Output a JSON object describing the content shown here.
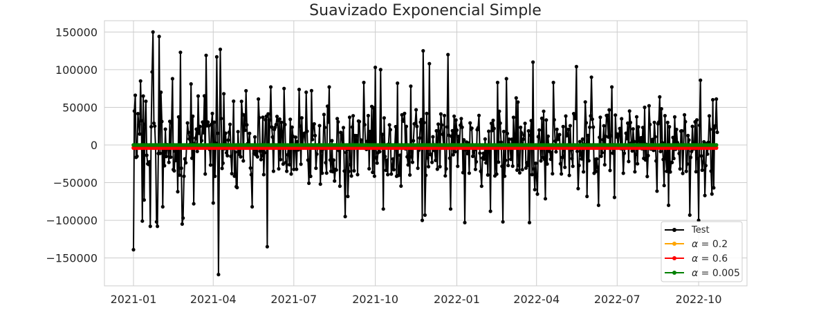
{
  "chart_data": {
    "type": "line",
    "title": "Suavizado Exponencial Simple",
    "xlabel": "",
    "ylabel": "",
    "x_range": [
      "2021-01-01",
      "2022-10-22"
    ],
    "ylim": [
      -187000,
      165000
    ],
    "x_ticks": [
      "2021-01",
      "2021-04",
      "2021-07",
      "2021-10",
      "2022-01",
      "2022-04",
      "2022-07",
      "2022-10"
    ],
    "y_ticks": [
      -150000,
      -100000,
      -50000,
      0,
      50000,
      100000,
      150000
    ],
    "y_tick_labels": [
      "−150000",
      "−100000",
      "−50000",
      "0",
      "50000",
      "100000",
      "150000"
    ],
    "grid": true,
    "legend_position": "bottom-right",
    "series": [
      {
        "name": "Test",
        "color": "#000000",
        "marker": "circle",
        "description_of_values": "daily series, 2021-01-01 to 2022-10-22",
        "anchor_points": [
          [
            "2021-01-01",
            -139000
          ],
          [
            "2021-01-02",
            45000
          ],
          [
            "2021-01-03",
            66000
          ],
          [
            "2021-01-05",
            -15000
          ],
          [
            "2021-01-07",
            27000
          ],
          [
            "2021-01-09",
            85000
          ],
          [
            "2021-01-11",
            -101000
          ],
          [
            "2021-01-12",
            65000
          ],
          [
            "2021-01-13",
            -73000
          ],
          [
            "2021-01-15",
            58000
          ],
          [
            "2021-01-17",
            -25000
          ],
          [
            "2021-01-20",
            -108000
          ],
          [
            "2021-01-22",
            97000
          ],
          [
            "2021-01-23",
            150000
          ],
          [
            "2021-01-25",
            25000
          ],
          [
            "2021-01-27",
            -102000
          ],
          [
            "2021-01-28",
            -108000
          ],
          [
            "2021-01-30",
            144000
          ],
          [
            "2021-02-01",
            70000
          ],
          [
            "2021-02-03",
            -82000
          ],
          [
            "2021-02-06",
            21000
          ],
          [
            "2021-02-14",
            88000
          ],
          [
            "2021-02-20",
            -62000
          ],
          [
            "2021-02-23",
            123000
          ],
          [
            "2021-02-25",
            -105000
          ],
          [
            "2021-02-26",
            -97000
          ],
          [
            "2021-03-07",
            81000
          ],
          [
            "2021-03-10",
            -78000
          ],
          [
            "2021-03-15",
            65000
          ],
          [
            "2021-03-24",
            119000
          ],
          [
            "2021-04-01",
            -77000
          ],
          [
            "2021-04-05",
            117000
          ],
          [
            "2021-04-07",
            -172000
          ],
          [
            "2021-04-09",
            127000
          ],
          [
            "2021-04-13",
            68000
          ],
          [
            "2021-04-22",
            -38000
          ],
          [
            "2021-05-08",
            72000
          ],
          [
            "2021-05-15",
            -82000
          ],
          [
            "2021-05-22",
            61000
          ],
          [
            "2021-06-01",
            -135000
          ],
          [
            "2021-06-05",
            77000
          ],
          [
            "2021-06-20",
            75000
          ],
          [
            "2021-07-15",
            70000
          ],
          [
            "2021-08-10",
            77000
          ],
          [
            "2021-08-28",
            -95000
          ],
          [
            "2021-09-18",
            83000
          ],
          [
            "2021-10-01",
            103000
          ],
          [
            "2021-10-07",
            100000
          ],
          [
            "2021-10-10",
            -85000
          ],
          [
            "2021-10-26",
            82000
          ],
          [
            "2021-11-10",
            78000
          ],
          [
            "2021-11-23",
            -100000
          ],
          [
            "2021-11-24",
            125000
          ],
          [
            "2021-11-26",
            -93000
          ],
          [
            "2021-12-01",
            108000
          ],
          [
            "2021-12-22",
            120000
          ],
          [
            "2021-12-25",
            -85000
          ],
          [
            "2022-01-10",
            -103000
          ],
          [
            "2022-02-08",
            -88000
          ],
          [
            "2022-02-16",
            83000
          ],
          [
            "2022-02-22",
            -102000
          ],
          [
            "2022-02-26",
            88000
          ],
          [
            "2022-03-24",
            -103000
          ],
          [
            "2022-03-28",
            110000
          ],
          [
            "2022-04-20",
            83000
          ],
          [
            "2022-05-16",
            104000
          ],
          [
            "2022-06-02",
            90000
          ],
          [
            "2022-06-10",
            -80000
          ],
          [
            "2022-06-25",
            77000
          ],
          [
            "2022-07-15",
            45000
          ],
          [
            "2022-08-01",
            50000
          ],
          [
            "2022-08-20",
            48000
          ],
          [
            "2022-08-28",
            -80000
          ],
          [
            "2022-09-15",
            40000
          ],
          [
            "2022-09-21",
            -93000
          ],
          [
            "2022-10-01",
            -100000
          ],
          [
            "2022-10-03",
            86000
          ],
          [
            "2022-10-08",
            -67000
          ],
          [
            "2022-10-17",
            60000
          ],
          [
            "2022-10-21",
            61000
          ]
        ]
      },
      {
        "name": "α = 0.2",
        "color": "#ffa500",
        "marker": "circle",
        "values_summary": "≈ -3000 flat, 2021-01-01 to 2022-10-22"
      },
      {
        "name": "α = 0.6",
        "color": "#ff0000",
        "marker": "circle",
        "values_summary": "≈ -4000 flat, 2021-01-01 to 2022-10-22"
      },
      {
        "name": "α = 0.005",
        "color": "#008000",
        "marker": "circle",
        "values_summary": "≈ 0 flat, 2021-01-01 to 2022-10-22"
      }
    ],
    "legend": [
      {
        "label": "Test",
        "color": "#000000"
      },
      {
        "label_prefix": "α",
        "label_suffix": " = 0.2",
        "color": "#ffa500"
      },
      {
        "label_prefix": "α",
        "label_suffix": " = 0.6",
        "color": "#ff0000"
      },
      {
        "label_prefix": "α",
        "label_suffix": " = 0.005",
        "color": "#008000"
      }
    ]
  }
}
